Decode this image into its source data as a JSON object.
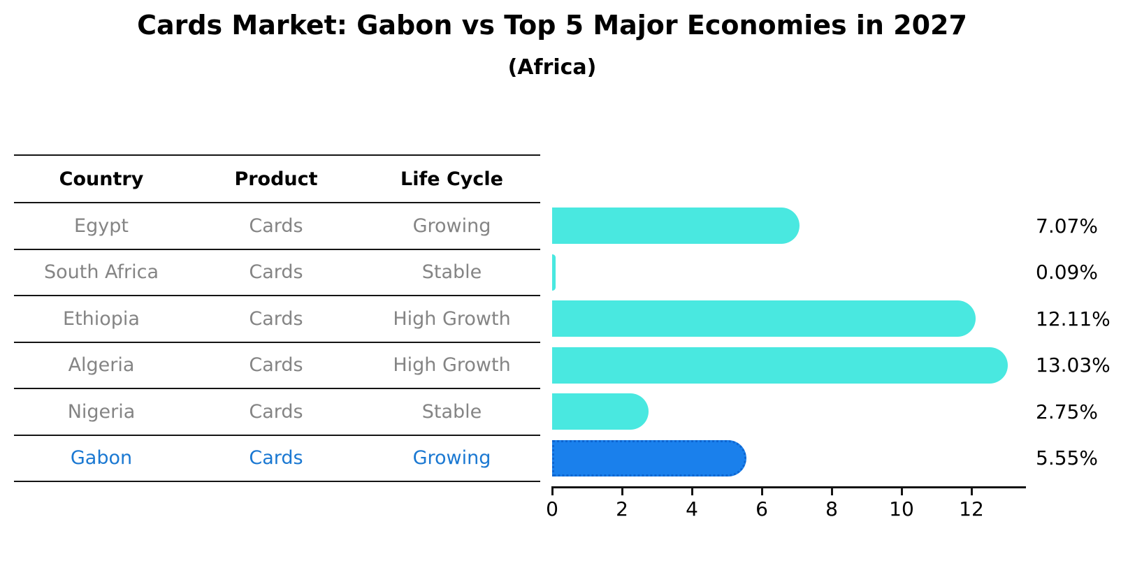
{
  "chart_data": {
    "type": "bar",
    "orientation": "horizontal",
    "title": "Cards Market: Gabon vs Top 5 Major Economies in 2027",
    "subtitle": "(Africa)",
    "columns": [
      "Country",
      "Product",
      "Life Cycle"
    ],
    "rows": [
      {
        "country": "Egypt",
        "product": "Cards",
        "life_cycle": "Growing",
        "value": 7.07,
        "value_label": "7.07%",
        "highlight": false
      },
      {
        "country": "South Africa",
        "product": "Cards",
        "life_cycle": "Stable",
        "value": 0.09,
        "value_label": "0.09%",
        "highlight": false
      },
      {
        "country": "Ethiopia",
        "product": "Cards",
        "life_cycle": "High Growth",
        "value": 12.11,
        "value_label": "12.11%",
        "highlight": false
      },
      {
        "country": "Algeria",
        "product": "Cards",
        "life_cycle": "High Growth",
        "value": 13.03,
        "value_label": "13.03%",
        "highlight": false
      },
      {
        "country": "Nigeria",
        "product": "Cards",
        "life_cycle": "Stable",
        "value": 2.75,
        "value_label": "2.75%",
        "highlight": false
      },
      {
        "country": "Gabon",
        "product": "Cards",
        "life_cycle": "Growing",
        "value": 5.55,
        "value_label": "5.55%",
        "highlight": true
      }
    ],
    "x_ticks": [
      0,
      2,
      4,
      6,
      8,
      10,
      12
    ],
    "xlim": [
      0,
      13.55
    ],
    "legend": "none",
    "grid": "off",
    "colors": {
      "bar": "#49e8e0",
      "highlight_bar": "#1a80ec",
      "highlight_bar_border": "#0d65d0",
      "highlight_text": "#1a78d2",
      "row_text": "#848484",
      "header_text": "#000000",
      "axis": "#141414"
    }
  }
}
